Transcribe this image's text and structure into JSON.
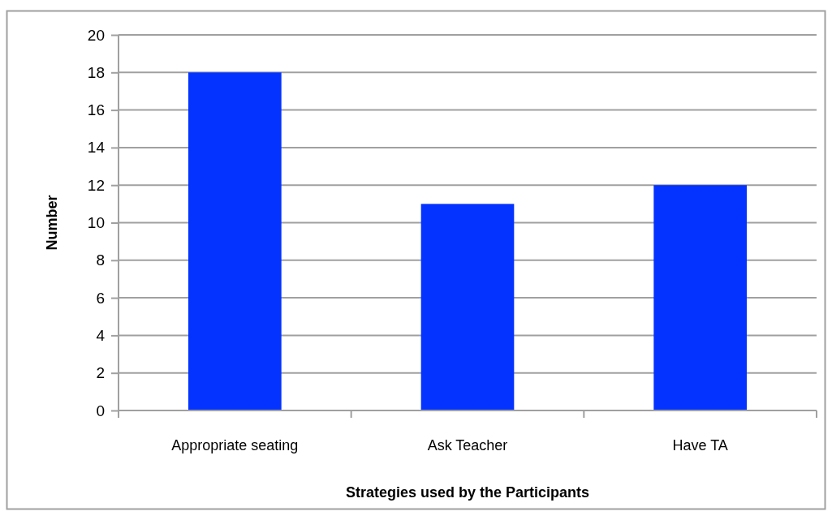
{
  "chart_data": {
    "type": "bar",
    "categories": [
      "Appropriate seating",
      "Ask Teacher",
      "Have TA"
    ],
    "values": [
      18,
      11,
      12
    ],
    "color": "#0433ff",
    "xlabel": "Strategies used by the Participants",
    "ylabel": "Number",
    "ylim": [
      0,
      20
    ],
    "yticks": [
      0,
      2,
      4,
      6,
      8,
      10,
      12,
      14,
      16,
      18,
      20
    ],
    "grid": "y"
  }
}
